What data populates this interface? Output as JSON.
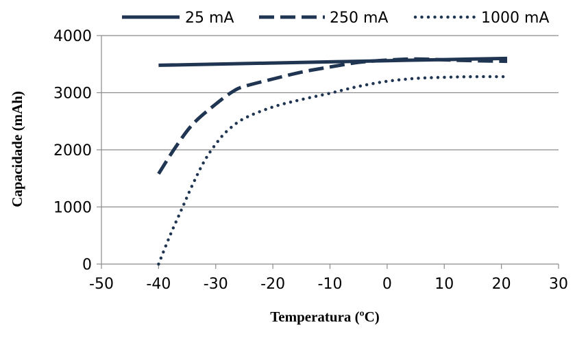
{
  "chart_data": {
    "type": "line",
    "title": "",
    "xlabel": "Temperatura (ºC)",
    "ylabel": "Capacidade (mAh)",
    "xlim": [
      -50,
      30
    ],
    "ylim": [
      0,
      4000
    ],
    "x_ticks": [
      "-50",
      "-40",
      "-30",
      "-20",
      "-10",
      "0",
      "10",
      "20",
      "30"
    ],
    "y_ticks": [
      "0",
      "1000",
      "2000",
      "3000",
      "4000"
    ],
    "grid": "horizontal",
    "legend_position": "top",
    "line_color": "#1f3552",
    "series": [
      {
        "name": "25 mA",
        "style": "solid",
        "points": [
          [
            -40,
            3480
          ],
          [
            -30,
            3500
          ],
          [
            -20,
            3520
          ],
          [
            -10,
            3540
          ],
          [
            0,
            3560
          ],
          [
            10,
            3580
          ],
          [
            21,
            3600
          ]
        ]
      },
      {
        "name": "250 mA",
        "style": "dashed",
        "points": [
          [
            -40,
            1580
          ],
          [
            -37,
            2050
          ],
          [
            -34,
            2450
          ],
          [
            -30,
            2800
          ],
          [
            -27,
            3020
          ],
          [
            -25,
            3110
          ],
          [
            -20,
            3240
          ],
          [
            -15,
            3360
          ],
          [
            -10,
            3450
          ],
          [
            -5,
            3530
          ],
          [
            0,
            3570
          ],
          [
            5,
            3590
          ],
          [
            10,
            3575
          ],
          [
            15,
            3560
          ],
          [
            21,
            3550
          ]
        ]
      },
      {
        "name": "1000 mA",
        "style": "dotted",
        "points": [
          [
            -40,
            0
          ],
          [
            -38,
            500
          ],
          [
            -36,
            950
          ],
          [
            -34,
            1400
          ],
          [
            -32,
            1800
          ],
          [
            -30,
            2100
          ],
          [
            -28,
            2330
          ],
          [
            -25,
            2550
          ],
          [
            -20,
            2750
          ],
          [
            -15,
            2880
          ],
          [
            -10,
            2990
          ],
          [
            -5,
            3110
          ],
          [
            0,
            3200
          ],
          [
            5,
            3250
          ],
          [
            10,
            3270
          ],
          [
            15,
            3280
          ],
          [
            21,
            3280
          ]
        ]
      }
    ]
  }
}
